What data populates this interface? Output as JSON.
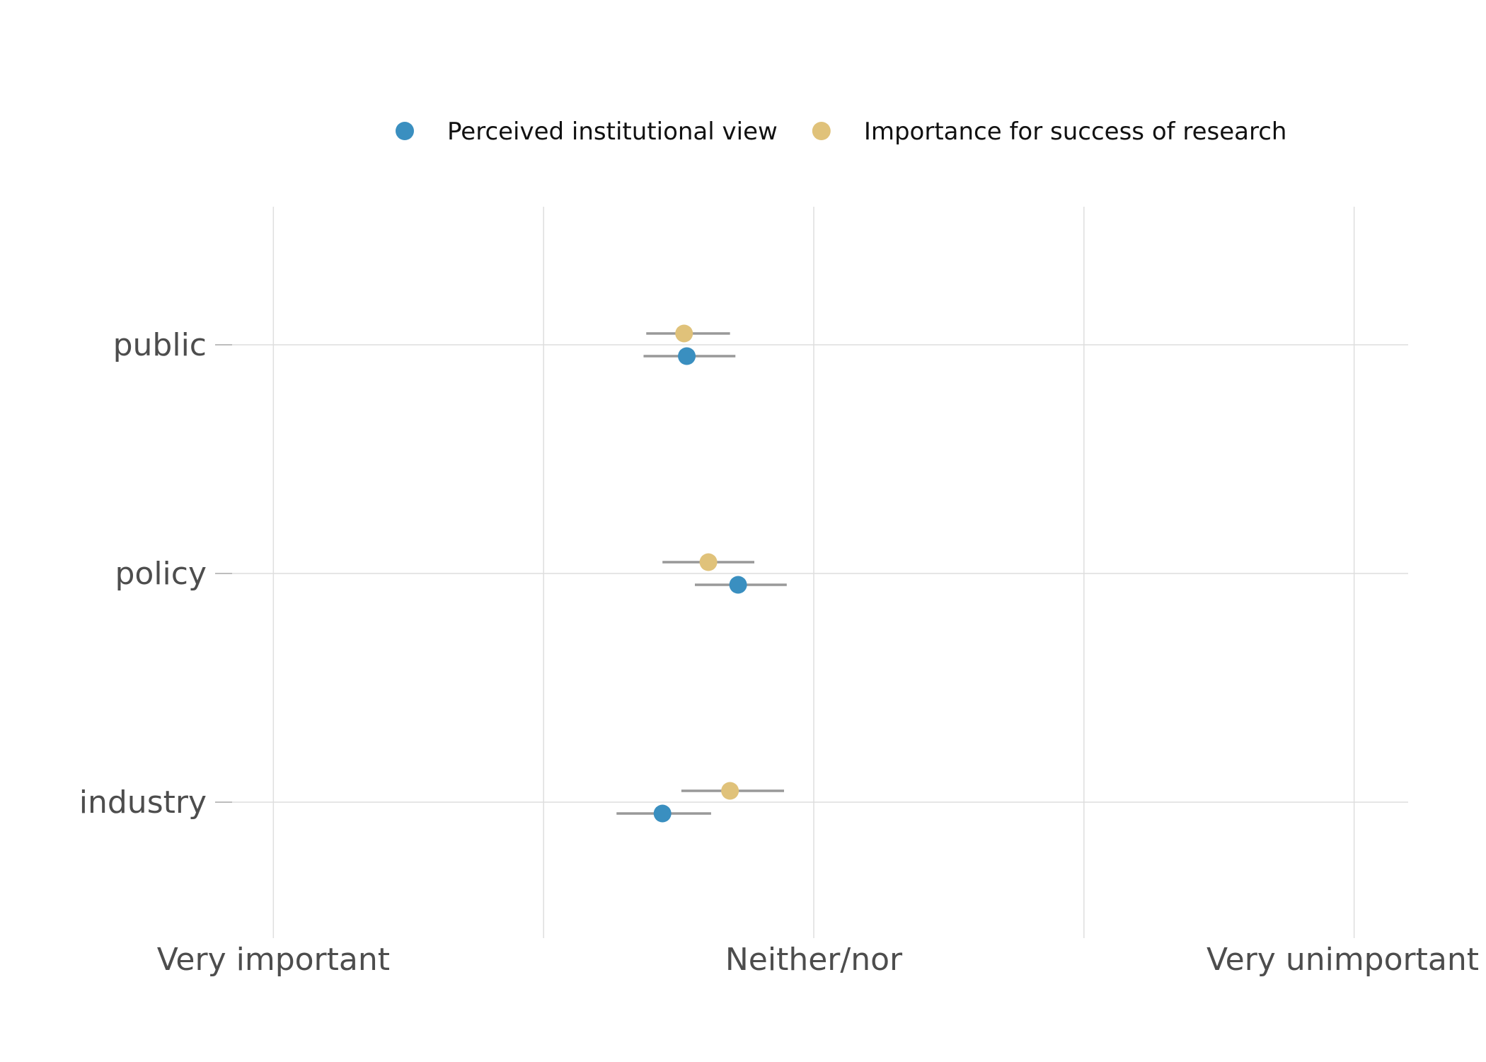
{
  "chart_data": {
    "type": "scatter",
    "subtype": "dot-with-error-bars",
    "title": "",
    "xlabel": "",
    "ylabel": "",
    "x_scale": {
      "min": 1,
      "max": 5,
      "view_min": 0.8,
      "view_max": 5.2,
      "ticks": [
        {
          "value": 1,
          "label": "Very important"
        },
        {
          "value": 3,
          "label": "Neither/nor"
        },
        {
          "value": 5,
          "label": "Very unimportant"
        }
      ],
      "gridlines": [
        1,
        2,
        3,
        4,
        5
      ]
    },
    "grid": true,
    "legend_position": "top",
    "categories": [
      "public",
      "policy",
      "industry"
    ],
    "series": [
      {
        "name": "Perceived institutional view",
        "color": "#3A8FC0",
        "points": [
          {
            "category": "public",
            "x": 2.53,
            "low": 2.37,
            "high": 2.71
          },
          {
            "category": "policy",
            "x": 2.72,
            "low": 2.56,
            "high": 2.9
          },
          {
            "category": "industry",
            "x": 2.44,
            "low": 2.27,
            "high": 2.62
          }
        ]
      },
      {
        "name": "Importance for success of research",
        "color": "#E0C27A",
        "points": [
          {
            "category": "public",
            "x": 2.52,
            "low": 2.38,
            "high": 2.69
          },
          {
            "category": "policy",
            "x": 2.61,
            "low": 2.44,
            "high": 2.78
          },
          {
            "category": "industry",
            "x": 2.69,
            "low": 2.51,
            "high": 2.89
          }
        ]
      }
    ]
  }
}
